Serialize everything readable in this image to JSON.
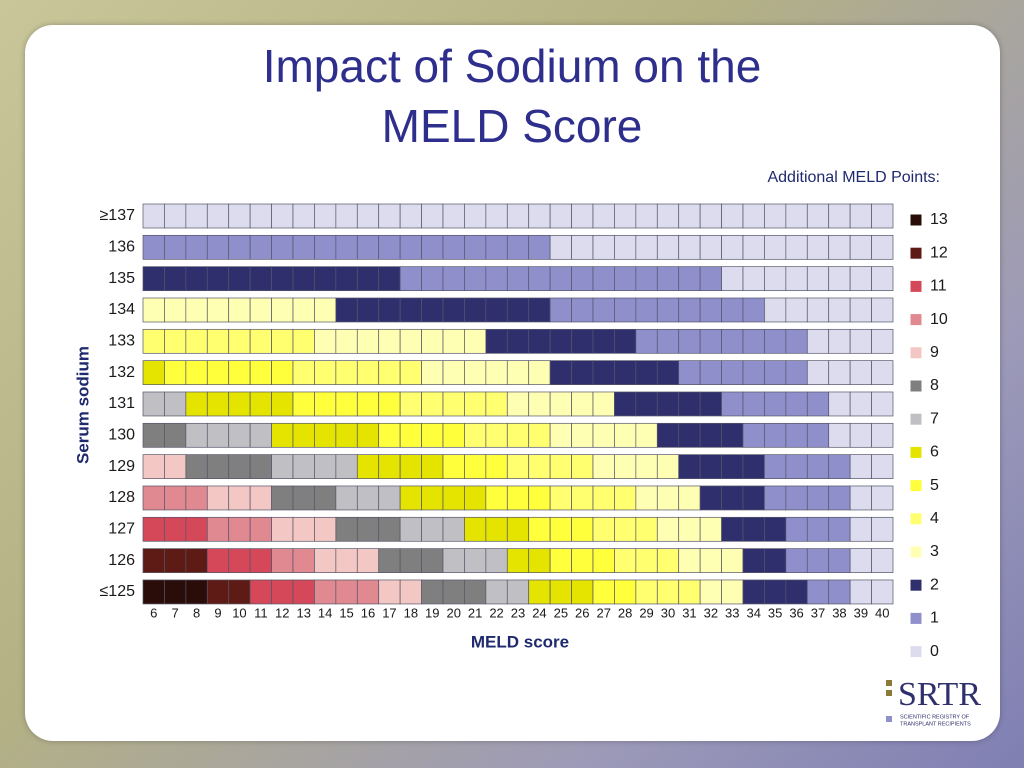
{
  "chart_data": {
    "type": "heatmap",
    "title": "Impact of Sodium on the MELD Score",
    "legend_title": "Additional MELD Points:",
    "x_label": "MELD score",
    "y_label": "Serum sodium",
    "x": [
      6,
      7,
      8,
      9,
      10,
      11,
      12,
      13,
      14,
      15,
      16,
      17,
      18,
      19,
      20,
      21,
      22,
      23,
      24,
      25,
      26,
      27,
      28,
      29,
      30,
      31,
      32,
      33,
      34,
      35,
      36,
      37,
      38,
      39,
      40
    ],
    "y": [
      "≥137",
      "136",
      "135",
      "134",
      "133",
      "132",
      "131",
      "130",
      "129",
      "128",
      "127",
      "126",
      "≤125"
    ],
    "values": [
      [
        0,
        0,
        0,
        0,
        0,
        0,
        0,
        0,
        0,
        0,
        0,
        0,
        0,
        0,
        0,
        0,
        0,
        0,
        0,
        0,
        0,
        0,
        0,
        0,
        0,
        0,
        0,
        0,
        0,
        0,
        0,
        0,
        0,
        0,
        0
      ],
      [
        1,
        1,
        1,
        1,
        1,
        1,
        1,
        1,
        1,
        1,
        1,
        1,
        1,
        1,
        1,
        1,
        1,
        1,
        1,
        0,
        0,
        0,
        0,
        0,
        0,
        0,
        0,
        0,
        0,
        0,
        0,
        0,
        0,
        0,
        0
      ],
      [
        2,
        2,
        2,
        2,
        2,
        2,
        2,
        2,
        2,
        2,
        2,
        2,
        1,
        1,
        1,
        1,
        1,
        1,
        1,
        1,
        1,
        1,
        1,
        1,
        1,
        1,
        1,
        0,
        0,
        0,
        0,
        0,
        0,
        0,
        0
      ],
      [
        3,
        3,
        3,
        3,
        3,
        3,
        3,
        3,
        3,
        2,
        2,
        2,
        2,
        2,
        2,
        2,
        2,
        2,
        2,
        1,
        1,
        1,
        1,
        1,
        1,
        1,
        1,
        1,
        1,
        0,
        0,
        0,
        0,
        0,
        0
      ],
      [
        4,
        4,
        4,
        4,
        4,
        4,
        4,
        4,
        3,
        3,
        3,
        3,
        3,
        3,
        3,
        3,
        2,
        2,
        2,
        2,
        2,
        2,
        2,
        1,
        1,
        1,
        1,
        1,
        1,
        1,
        1,
        0,
        0,
        0,
        0
      ],
      [
        6,
        5,
        5,
        5,
        5,
        5,
        5,
        4,
        4,
        4,
        4,
        4,
        4,
        3,
        3,
        3,
        3,
        3,
        3,
        2,
        2,
        2,
        2,
        2,
        2,
        1,
        1,
        1,
        1,
        1,
        1,
        0,
        0,
        0,
        0
      ],
      [
        7,
        7,
        6,
        6,
        6,
        6,
        6,
        5,
        5,
        5,
        5,
        5,
        4,
        4,
        4,
        4,
        4,
        3,
        3,
        3,
        3,
        3,
        2,
        2,
        2,
        2,
        2,
        1,
        1,
        1,
        1,
        1,
        0,
        0,
        0
      ],
      [
        8,
        8,
        7,
        7,
        7,
        7,
        6,
        6,
        6,
        6,
        6,
        5,
        5,
        5,
        5,
        4,
        4,
        4,
        4,
        3,
        3,
        3,
        3,
        3,
        2,
        2,
        2,
        2,
        1,
        1,
        1,
        1,
        0,
        0,
        0
      ],
      [
        9,
        9,
        8,
        8,
        8,
        8,
        7,
        7,
        7,
        7,
        6,
        6,
        6,
        6,
        5,
        5,
        5,
        4,
        4,
        4,
        4,
        3,
        3,
        3,
        3,
        2,
        2,
        2,
        2,
        1,
        1,
        1,
        1,
        0,
        0
      ],
      [
        10,
        10,
        10,
        9,
        9,
        9,
        8,
        8,
        8,
        7,
        7,
        7,
        6,
        6,
        6,
        6,
        5,
        5,
        5,
        4,
        4,
        4,
        4,
        3,
        3,
        3,
        2,
        2,
        2,
        1,
        1,
        1,
        1,
        0,
        0
      ],
      [
        11,
        11,
        11,
        10,
        10,
        10,
        9,
        9,
        9,
        8,
        8,
        8,
        7,
        7,
        7,
        6,
        6,
        6,
        5,
        5,
        5,
        4,
        4,
        4,
        3,
        3,
        3,
        2,
        2,
        2,
        1,
        1,
        1,
        0,
        0
      ],
      [
        12,
        12,
        12,
        11,
        11,
        11,
        10,
        10,
        9,
        9,
        9,
        8,
        8,
        8,
        7,
        7,
        7,
        6,
        6,
        5,
        5,
        5,
        4,
        4,
        4,
        3,
        3,
        3,
        2,
        2,
        1,
        1,
        1,
        0,
        0
      ],
      [
        13,
        13,
        13,
        12,
        12,
        11,
        11,
        11,
        10,
        10,
        10,
        9,
        9,
        8,
        8,
        8,
        7,
        7,
        6,
        6,
        6,
        5,
        5,
        4,
        4,
        4,
        3,
        3,
        2,
        2,
        2,
        1,
        1,
        0,
        0
      ]
    ],
    "levels": [
      {
        "value": 13,
        "color": "#2a0d09"
      },
      {
        "value": 12,
        "color": "#5e1a14"
      },
      {
        "value": 11,
        "color": "#d4485a"
      },
      {
        "value": 10,
        "color": "#e08990"
      },
      {
        "value": 9,
        "color": "#f3c7c3"
      },
      {
        "value": 8,
        "color": "#7f7f7f"
      },
      {
        "value": 7,
        "color": "#bfbfc4"
      },
      {
        "value": 6,
        "color": "#e4e400"
      },
      {
        "value": 5,
        "color": "#ffff3c"
      },
      {
        "value": 4,
        "color": "#ffff70"
      },
      {
        "value": 3,
        "color": "#ffffb4"
      },
      {
        "value": 2,
        "color": "#2f2f6e"
      },
      {
        "value": 1,
        "color": "#8f8fcc"
      },
      {
        "value": 0,
        "color": "#dcdcee"
      }
    ]
  },
  "logo": {
    "mark": "SRTR",
    "caption_1": "SCIENTIFIC REGISTRY OF",
    "caption_2": "TRANSPLANT RECIPIENTS"
  }
}
